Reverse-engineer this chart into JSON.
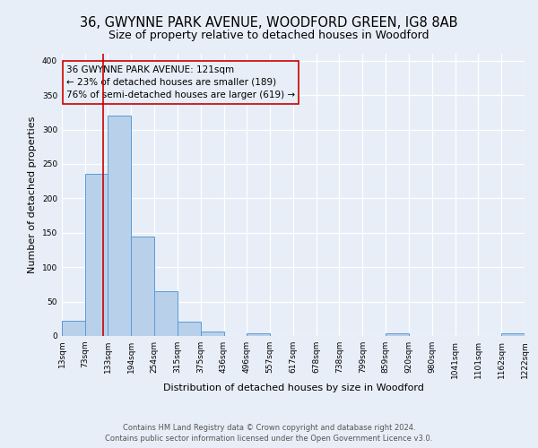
{
  "title": "36, GWYNNE PARK AVENUE, WOODFORD GREEN, IG8 8AB",
  "subtitle": "Size of property relative to detached houses in Woodford",
  "xlabel": "Distribution of detached houses by size in Woodford",
  "ylabel": "Number of detached properties",
  "bin_edges": [
    13,
    73,
    133,
    194,
    254,
    315,
    375,
    436,
    496,
    557,
    617,
    678,
    738,
    799,
    859,
    920,
    980,
    1041,
    1101,
    1162,
    1222
  ],
  "bin_heights": [
    22,
    235,
    320,
    145,
    65,
    21,
    7,
    0,
    4,
    0,
    0,
    0,
    0,
    0,
    4,
    0,
    0,
    0,
    0,
    4
  ],
  "bar_facecolor": "#b8d0ea",
  "bar_edgecolor": "#5b9bd5",
  "property_line_x": 121,
  "property_line_color": "#cc0000",
  "annotation_box_edgecolor": "#cc0000",
  "annotation_line1": "36 GWYNNE PARK AVENUE: 121sqm",
  "annotation_line2": "← 23% of detached houses are smaller (189)",
  "annotation_line3": "76% of semi-detached houses are larger (619) →",
  "ylim": [
    0,
    410
  ],
  "yticks": [
    0,
    50,
    100,
    150,
    200,
    250,
    300,
    350,
    400
  ],
  "tick_labels": [
    "13sqm",
    "73sqm",
    "133sqm",
    "194sqm",
    "254sqm",
    "315sqm",
    "375sqm",
    "436sqm",
    "496sqm",
    "557sqm",
    "617sqm",
    "678sqm",
    "738sqm",
    "799sqm",
    "859sqm",
    "920sqm",
    "980sqm",
    "1041sqm",
    "1101sqm",
    "1162sqm",
    "1222sqm"
  ],
  "footer_line1": "Contains HM Land Registry data © Crown copyright and database right 2024.",
  "footer_line2": "Contains public sector information licensed under the Open Government Licence v3.0.",
  "background_color": "#e8eef7",
  "grid_color": "#ffffff",
  "title_fontsize": 10.5,
  "subtitle_fontsize": 9,
  "axis_label_fontsize": 8,
  "tick_fontsize": 6.5,
  "annotation_fontsize": 7.5,
  "footer_fontsize": 6
}
